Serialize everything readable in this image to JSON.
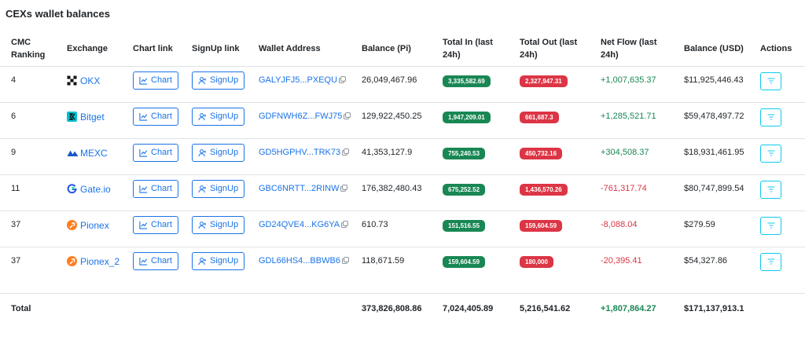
{
  "title": "CEXs wallet balances",
  "headers": {
    "rank_line1": "CMC",
    "rank_line2": "Ranking",
    "exchange": "Exchange",
    "chart_link": "Chart link",
    "signup_link": "SignUp link",
    "wallet": "Wallet Address",
    "balance_pi": "Balance (Pi)",
    "total_in_line1": "Total In (last",
    "total_in_line2": "24h)",
    "total_out_line1": "Total Out (last",
    "total_out_line2": "24h)",
    "net_flow_line1": "Net Flow (last",
    "net_flow_line2": "24h)",
    "balance_usd": "Balance (USD)",
    "actions": "Actions"
  },
  "labels": {
    "chart": "Chart",
    "signup": "SignUp"
  },
  "colors": {
    "link": "#1a73e8",
    "positive": "#198754",
    "negative": "#dc3545",
    "action_border": "#0dcaf0"
  },
  "rows": [
    {
      "rank": "4",
      "exchange": "OKX",
      "logo": "okx-logo-icon",
      "wallet": "GALYJFJ5...PXEQU",
      "balance_pi": "26,049,467.96",
      "total_in": "3,335,582.69",
      "total_out": "2,327,947.31",
      "net_flow": "+1,007,635.37",
      "balance_usd": "$11,925,446.43"
    },
    {
      "rank": "6",
      "exchange": "Bitget",
      "logo": "bitget-logo-icon",
      "wallet": "GDFNWH6Z...FWJ75",
      "balance_pi": "129,922,450.25",
      "total_in": "1,947,209.01",
      "total_out": "661,687.3",
      "net_flow": "+1,285,521.71",
      "balance_usd": "$59,478,497.72"
    },
    {
      "rank": "9",
      "exchange": "MEXC",
      "logo": "mexc-logo-icon",
      "wallet": "GD5HGPHV...TRK73",
      "balance_pi": "41,353,127.9",
      "total_in": "755,240.53",
      "total_out": "450,732.16",
      "net_flow": "+304,508.37",
      "balance_usd": "$18,931,461.95"
    },
    {
      "rank": "11",
      "exchange": "Gate.io",
      "logo": "gateio-logo-icon",
      "wallet": "GBC6NRTT...2RINW",
      "balance_pi": "176,382,480.43",
      "total_in": "675,252.52",
      "total_out": "1,436,570.26",
      "net_flow": "-761,317.74",
      "balance_usd": "$80,747,899.54"
    },
    {
      "rank": "37",
      "exchange": "Pionex",
      "logo": "pionex-logo-icon",
      "wallet": "GD24QVE4...KG6YA",
      "balance_pi": "610.73",
      "total_in": "151,516.55",
      "total_out": "159,604.59",
      "net_flow": "-8,088.04",
      "balance_usd": "$279.59"
    },
    {
      "rank": "37",
      "exchange": "Pionex_2",
      "logo": "pionex-logo-icon",
      "wallet": "GDL66HS4...BBWB6",
      "balance_pi": "118,671.59",
      "total_in": "159,604.59",
      "total_out": "180,000",
      "net_flow": "-20,395.41",
      "balance_usd": "$54,327.86"
    }
  ],
  "total": {
    "label": "Total",
    "balance_pi": "373,826,808.86",
    "total_in": "7,024,405.89",
    "total_out": "5,216,541.62",
    "net_flow": "+1,807,864.27",
    "balance_usd": "$171,137,913.1"
  }
}
